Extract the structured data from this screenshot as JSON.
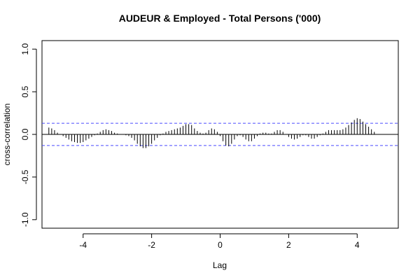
{
  "chart_data": {
    "type": "bar",
    "title": "AUDEUR & Employed - Total Persons ('000)",
    "xlabel": "Lag",
    "ylabel": "cross-correlation",
    "xlim": [
      -5.2,
      5.2
    ],
    "ylim": [
      -1.1,
      1.1
    ],
    "xticks": [
      -4,
      -2,
      0,
      2,
      4
    ],
    "xtick_labels": [
      "-4",
      "-2",
      "0",
      "2",
      "4"
    ],
    "yticks": [
      -1.0,
      -0.5,
      0.0,
      0.5,
      1.0
    ],
    "ytick_labels": [
      "-1.0",
      "-0.5",
      "0.0",
      "0.5",
      "1.0"
    ],
    "confidence_bound": 0.13,
    "colors": {
      "bars": "#000000",
      "bounds": "#4a4aff",
      "zero_line": "#000000",
      "frame": "#000000"
    },
    "x": [
      -5.0,
      -4.9167,
      -4.8333,
      -4.75,
      -4.6667,
      -4.5833,
      -4.5,
      -4.4167,
      -4.3333,
      -4.25,
      -4.1667,
      -4.0833,
      -4.0,
      -3.9167,
      -3.8333,
      -3.75,
      -3.6667,
      -3.5833,
      -3.5,
      -3.4167,
      -3.3333,
      -3.25,
      -3.1667,
      -3.0833,
      -3.0,
      -2.9167,
      -2.8333,
      -2.75,
      -2.6667,
      -2.5833,
      -2.5,
      -2.4167,
      -2.3333,
      -2.25,
      -2.1667,
      -2.0833,
      -2.0,
      -1.9167,
      -1.8333,
      -1.75,
      -1.6667,
      -1.5833,
      -1.5,
      -1.4167,
      -1.3333,
      -1.25,
      -1.1667,
      -1.0833,
      -1.0,
      -0.9167,
      -0.8333,
      -0.75,
      -0.6667,
      -0.5833,
      -0.5,
      -0.4167,
      -0.3333,
      -0.25,
      -0.1667,
      -0.0833,
      0.0,
      0.0833,
      0.1667,
      0.25,
      0.3333,
      0.4167,
      0.5,
      0.5833,
      0.6667,
      0.75,
      0.8333,
      0.9167,
      1.0,
      1.0833,
      1.1667,
      1.25,
      1.3333,
      1.4167,
      1.5,
      1.5833,
      1.6667,
      1.75,
      1.8333,
      1.9167,
      2.0,
      2.0833,
      2.1667,
      2.25,
      2.3333,
      2.4167,
      2.5,
      2.5833,
      2.6667,
      2.75,
      2.8333,
      2.9167,
      3.0,
      3.0833,
      3.1667,
      3.25,
      3.3333,
      3.4167,
      3.5,
      3.5833,
      3.6667,
      3.75,
      3.8333,
      3.9167,
      4.0,
      4.0833,
      4.1667,
      4.25,
      4.3333,
      4.4167,
      4.5,
      4.5833,
      4.6667,
      4.75,
      4.8333,
      4.9167,
      5.0
    ],
    "values": [
      0.08,
      0.07,
      0.05,
      0.02,
      0.0,
      -0.02,
      -0.04,
      -0.06,
      -0.08,
      -0.09,
      -0.1,
      -0.1,
      -0.09,
      -0.07,
      -0.05,
      -0.03,
      -0.01,
      0.01,
      0.03,
      0.05,
      0.06,
      0.05,
      0.04,
      0.02,
      0.01,
      0.0,
      0.0,
      -0.01,
      -0.02,
      -0.04,
      -0.07,
      -0.11,
      -0.14,
      -0.16,
      -0.16,
      -0.14,
      -0.11,
      -0.07,
      -0.04,
      -0.01,
      0.01,
      0.03,
      0.04,
      0.05,
      0.06,
      0.07,
      0.08,
      0.1,
      0.12,
      0.12,
      0.11,
      0.07,
      0.04,
      0.02,
      0.01,
      0.02,
      0.05,
      0.07,
      0.06,
      0.03,
      -0.02,
      -0.08,
      -0.13,
      -0.14,
      -0.11,
      -0.06,
      -0.02,
      -0.01,
      -0.03,
      -0.06,
      -0.08,
      -0.08,
      -0.05,
      -0.02,
      0.01,
      0.02,
      0.02,
      0.01,
      0.01,
      0.03,
      0.05,
      0.05,
      0.03,
      0.0,
      -0.03,
      -0.05,
      -0.06,
      -0.05,
      -0.03,
      -0.01,
      -0.01,
      -0.03,
      -0.05,
      -0.05,
      -0.03,
      -0.01,
      0.01,
      0.03,
      0.05,
      0.05,
      0.05,
      0.05,
      0.05,
      0.06,
      0.08,
      0.11,
      0.14,
      0.17,
      0.19,
      0.18,
      0.15,
      0.12,
      0.09,
      0.06,
      0.03,
      -0.0,
      -0.0,
      0.0,
      0.0,
      0.0,
      0.0
    ]
  }
}
